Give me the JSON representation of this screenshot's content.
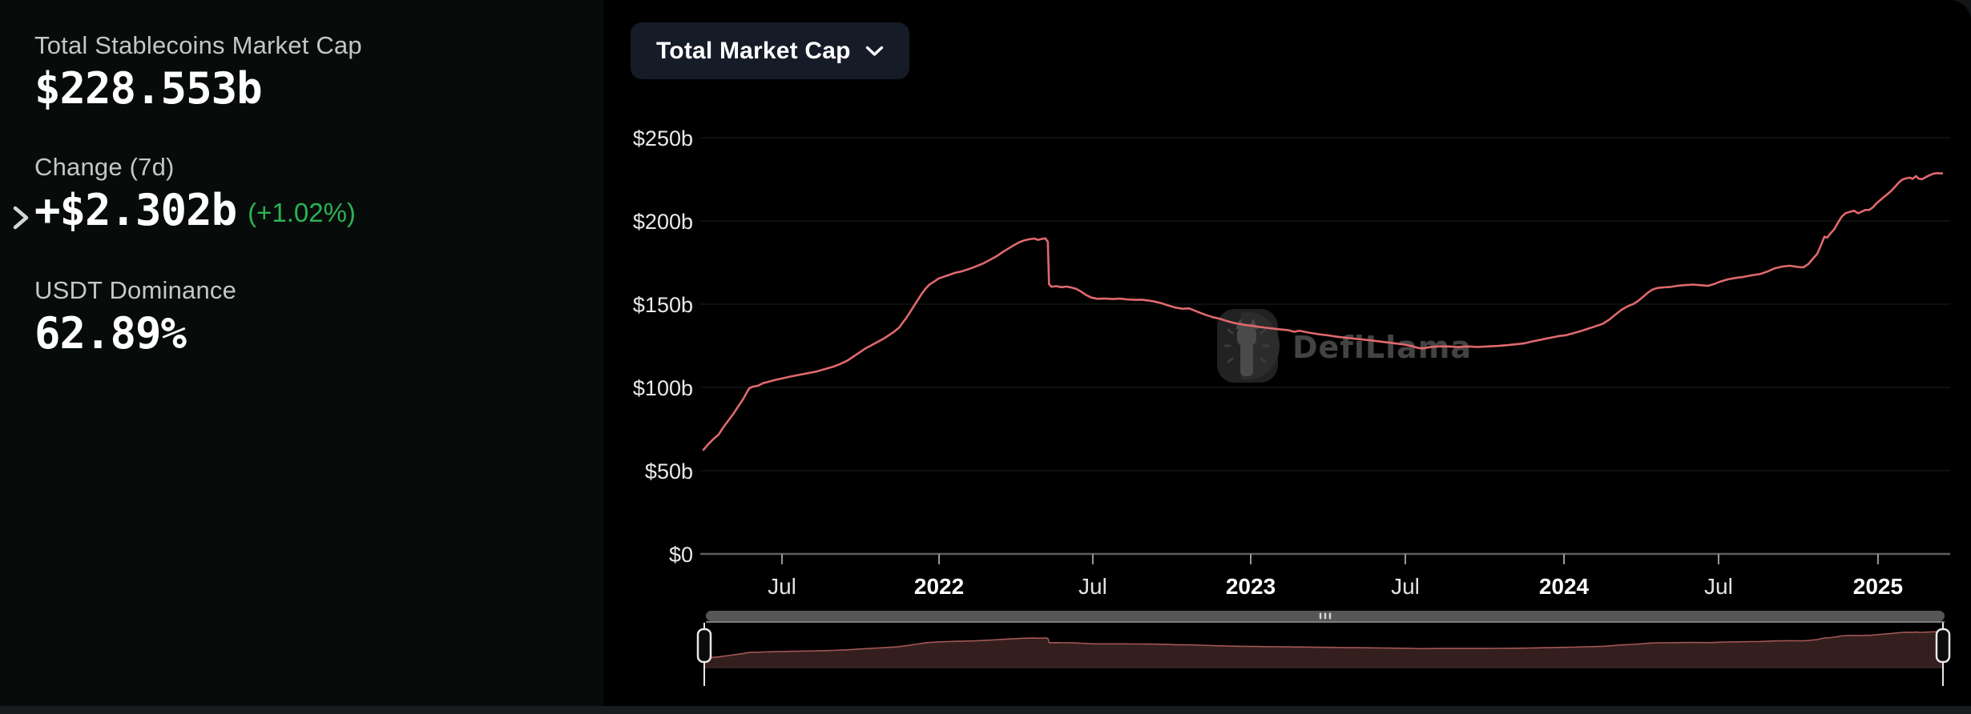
{
  "sidebar": {
    "stats": [
      {
        "label": "Total Stablecoins Market Cap",
        "value": "$228.553b"
      },
      {
        "label": "Change (7d)",
        "value": "+$2.302b",
        "change_pct": "(+1.02%)"
      },
      {
        "label": "USDT Dominance",
        "value": "62.89%"
      }
    ]
  },
  "toolbar": {
    "metric_selector_label": "Total Market Cap"
  },
  "watermark": {
    "text": "DefiLlama"
  },
  "colors": {
    "line": "#e0696e",
    "brush_fill": "#341f1e",
    "brush_line": "#a25755",
    "accent_green": "#2bb254",
    "button_bg": "#161b28",
    "grid": "#1d1f1f",
    "axis": "#5f5f5f"
  },
  "chart_data": {
    "type": "line",
    "title": "Total Market Cap",
    "xlabel": "",
    "ylabel": "",
    "y_unit": "USD billions",
    "ylim": [
      0,
      250
    ],
    "grid": true,
    "legend_position": "none",
    "y_ticks": [
      {
        "value": 0,
        "label": "$0"
      },
      {
        "value": 50,
        "label": "$50b"
      },
      {
        "value": 100,
        "label": "$100b"
      },
      {
        "value": 150,
        "label": "$150b"
      },
      {
        "value": 200,
        "label": "$200b"
      },
      {
        "value": 250,
        "label": "$250b"
      }
    ],
    "x_ticks": [
      {
        "pos": 0.0634,
        "label": "Jul",
        "bold": false
      },
      {
        "pos": 0.1902,
        "label": "2022",
        "bold": true
      },
      {
        "pos": 0.3143,
        "label": "Jul",
        "bold": false
      },
      {
        "pos": 0.4418,
        "label": "2023",
        "bold": true
      },
      {
        "pos": 0.5666,
        "label": "Jul",
        "bold": false
      },
      {
        "pos": 0.6947,
        "label": "2024",
        "bold": true
      },
      {
        "pos": 0.8195,
        "label": "Jul",
        "bold": false
      },
      {
        "pos": 0.9482,
        "label": "2025",
        "bold": true
      }
    ],
    "series": [
      {
        "name": "Total Stablecoins Market Cap ($b)",
        "points": [
          [
            0.0,
            62.5
          ],
          [
            0.004,
            66
          ],
          [
            0.008,
            69
          ],
          [
            0.012,
            71.5
          ],
          [
            0.016,
            76
          ],
          [
            0.02,
            80
          ],
          [
            0.024,
            84
          ],
          [
            0.028,
            88.5
          ],
          [
            0.032,
            93
          ],
          [
            0.035,
            97
          ],
          [
            0.037,
            99.5
          ],
          [
            0.04,
            100.5
          ],
          [
            0.044,
            101
          ],
          [
            0.048,
            102.5
          ],
          [
            0.053,
            103.5
          ],
          [
            0.058,
            104.5
          ],
          [
            0.064,
            105.5
          ],
          [
            0.07,
            106.5
          ],
          [
            0.077,
            107.5
          ],
          [
            0.084,
            108.5
          ],
          [
            0.091,
            109.5
          ],
          [
            0.098,
            111
          ],
          [
            0.105,
            112.5
          ],
          [
            0.11,
            114
          ],
          [
            0.116,
            116
          ],
          [
            0.121,
            118.5
          ],
          [
            0.126,
            121
          ],
          [
            0.131,
            123.5
          ],
          [
            0.136,
            125.5
          ],
          [
            0.141,
            127.5
          ],
          [
            0.146,
            129.5
          ],
          [
            0.15,
            131.5
          ],
          [
            0.154,
            133.5
          ],
          [
            0.158,
            136
          ],
          [
            0.161,
            139
          ],
          [
            0.164,
            142
          ],
          [
            0.167,
            145.5
          ],
          [
            0.17,
            149
          ],
          [
            0.173,
            152.5
          ],
          [
            0.176,
            156
          ],
          [
            0.179,
            159
          ],
          [
            0.182,
            161.5
          ],
          [
            0.186,
            163.5
          ],
          [
            0.19,
            165.5
          ],
          [
            0.194,
            166.5
          ],
          [
            0.198,
            167.5
          ],
          [
            0.203,
            168.8
          ],
          [
            0.208,
            169.6
          ],
          [
            0.214,
            171
          ],
          [
            0.22,
            172.7
          ],
          [
            0.226,
            174.5
          ],
          [
            0.231,
            176.5
          ],
          [
            0.237,
            179
          ],
          [
            0.242,
            181.5
          ],
          [
            0.247,
            183.8
          ],
          [
            0.251,
            185.6
          ],
          [
            0.255,
            187.2
          ],
          [
            0.259,
            188.3
          ],
          [
            0.263,
            189
          ],
          [
            0.267,
            189.4
          ],
          [
            0.27,
            188.6
          ],
          [
            0.273,
            189.2
          ],
          [
            0.276,
            189.5
          ],
          [
            0.278,
            187.5
          ],
          [
            0.279,
            162
          ],
          [
            0.281,
            160.5
          ],
          [
            0.285,
            160.8
          ],
          [
            0.289,
            160.2
          ],
          [
            0.293,
            160.6
          ],
          [
            0.297,
            160
          ],
          [
            0.301,
            159.2
          ],
          [
            0.305,
            157.5
          ],
          [
            0.309,
            155.5
          ],
          [
            0.313,
            154
          ],
          [
            0.318,
            153.2
          ],
          [
            0.324,
            153.4
          ],
          [
            0.33,
            153.1
          ],
          [
            0.336,
            153.3
          ],
          [
            0.342,
            152.9
          ],
          [
            0.348,
            152.6
          ],
          [
            0.354,
            152.7
          ],
          [
            0.359,
            152.2
          ],
          [
            0.364,
            151.6
          ],
          [
            0.369,
            150.7
          ],
          [
            0.375,
            149.3
          ],
          [
            0.381,
            148
          ],
          [
            0.387,
            147.2
          ],
          [
            0.392,
            147.5
          ],
          [
            0.396,
            146.3
          ],
          [
            0.401,
            144.8
          ],
          [
            0.406,
            143.4
          ],
          [
            0.411,
            142.2
          ],
          [
            0.417,
            141.2
          ],
          [
            0.423,
            139.8
          ],
          [
            0.429,
            138.6
          ],
          [
            0.435,
            137.8
          ],
          [
            0.442,
            137.1
          ],
          [
            0.449,
            136.3
          ],
          [
            0.457,
            135.6
          ],
          [
            0.465,
            134.9
          ],
          [
            0.472,
            134.4
          ],
          [
            0.477,
            133.4
          ],
          [
            0.481,
            134.1
          ],
          [
            0.488,
            133
          ],
          [
            0.496,
            132
          ],
          [
            0.504,
            131.3
          ],
          [
            0.512,
            130.4
          ],
          [
            0.52,
            129.7
          ],
          [
            0.529,
            129
          ],
          [
            0.538,
            128.3
          ],
          [
            0.547,
            127.5
          ],
          [
            0.557,
            126.6
          ],
          [
            0.566,
            125.7
          ],
          [
            0.572,
            124.8
          ],
          [
            0.577,
            123.7
          ],
          [
            0.581,
            123.4
          ],
          [
            0.586,
            124.2
          ],
          [
            0.593,
            124.6
          ],
          [
            0.601,
            124.6
          ],
          [
            0.609,
            124.3
          ],
          [
            0.617,
            124.6
          ],
          [
            0.625,
            124.3
          ],
          [
            0.633,
            124.6
          ],
          [
            0.641,
            124.9
          ],
          [
            0.649,
            125.4
          ],
          [
            0.656,
            125.9
          ],
          [
            0.662,
            126.4
          ],
          [
            0.669,
            127.6
          ],
          [
            0.675,
            128.5
          ],
          [
            0.681,
            129.4
          ],
          [
            0.687,
            130.3
          ],
          [
            0.691,
            130.9
          ],
          [
            0.696,
            131.3
          ],
          [
            0.702,
            132.5
          ],
          [
            0.708,
            133.8
          ],
          [
            0.714,
            135.2
          ],
          [
            0.72,
            136.7
          ],
          [
            0.726,
            138.2
          ],
          [
            0.731,
            140.6
          ],
          [
            0.736,
            143.6
          ],
          [
            0.741,
            146.6
          ],
          [
            0.746,
            148.7
          ],
          [
            0.751,
            150.2
          ],
          [
            0.755,
            152.2
          ],
          [
            0.759,
            154.7
          ],
          [
            0.762,
            156.7
          ],
          [
            0.766,
            158.7
          ],
          [
            0.77,
            159.7
          ],
          [
            0.775,
            160.1
          ],
          [
            0.781,
            160.4
          ],
          [
            0.787,
            161.1
          ],
          [
            0.793,
            161.5
          ],
          [
            0.799,
            161.8
          ],
          [
            0.805,
            161.4
          ],
          [
            0.811,
            161
          ],
          [
            0.816,
            162.1
          ],
          [
            0.821,
            163.6
          ],
          [
            0.827,
            164.9
          ],
          [
            0.833,
            165.7
          ],
          [
            0.839,
            166.3
          ],
          [
            0.846,
            167.3
          ],
          [
            0.853,
            168.1
          ],
          [
            0.859,
            169.6
          ],
          [
            0.865,
            171.6
          ],
          [
            0.871,
            172.6
          ],
          [
            0.877,
            173.1
          ],
          [
            0.883,
            172.4
          ],
          [
            0.888,
            172.1
          ],
          [
            0.892,
            174.1
          ],
          [
            0.896,
            177.6
          ],
          [
            0.899,
            180.1
          ],
          [
            0.902,
            185.1
          ],
          [
            0.905,
            190.6
          ],
          [
            0.907,
            189.9
          ],
          [
            0.91,
            192.6
          ],
          [
            0.913,
            195.1
          ],
          [
            0.916,
            199.1
          ],
          [
            0.919,
            202.6
          ],
          [
            0.922,
            204.6
          ],
          [
            0.926,
            205.6
          ],
          [
            0.929,
            206.1
          ],
          [
            0.932,
            204.6
          ],
          [
            0.935,
            205.6
          ],
          [
            0.938,
            206.6
          ],
          [
            0.941,
            206.6
          ],
          [
            0.944,
            208.1
          ],
          [
            0.947,
            210.6
          ],
          [
            0.951,
            213.1
          ],
          [
            0.955,
            215.6
          ],
          [
            0.959,
            218.1
          ],
          [
            0.962,
            220.6
          ],
          [
            0.965,
            223.1
          ],
          [
            0.968,
            224.9
          ],
          [
            0.971,
            225.6
          ],
          [
            0.974,
            226
          ],
          [
            0.976,
            225.3
          ],
          [
            0.979,
            226.9
          ],
          [
            0.981,
            225.4
          ],
          [
            0.984,
            225.1
          ],
          [
            0.987,
            226.4
          ],
          [
            0.99,
            227.5
          ],
          [
            0.993,
            228.4
          ],
          [
            0.996,
            228.7
          ],
          [
            1.0,
            228.5
          ]
        ]
      }
    ]
  }
}
